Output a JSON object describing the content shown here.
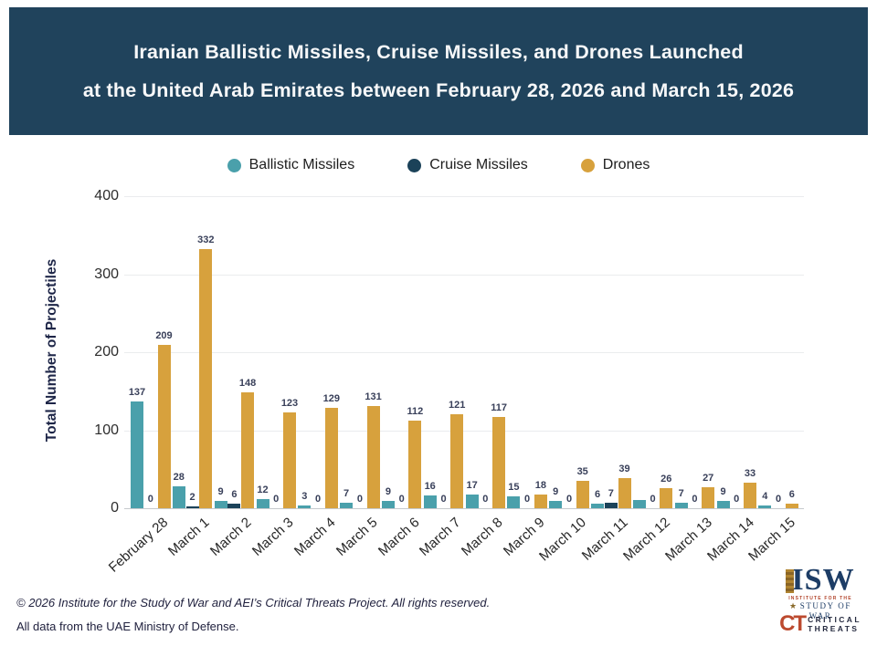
{
  "header": {
    "title_line1": "Iranian Ballistic Missiles, Cruise Missiles, and Drones Launched",
    "title_line2": "at the United Arab Emirates between February 28, 2026 and March 15, 2026"
  },
  "chart_data": {
    "type": "bar",
    "title": "Iranian Ballistic Missiles, Cruise Missiles, and Drones Launched at the United Arab Emirates between February 28, 2026 and March 15, 2026",
    "categories": [
      "February 28",
      "March 1",
      "March 2",
      "March 3",
      "March 4",
      "March 5",
      "March 6",
      "March 7",
      "March 8",
      "March 9",
      "March 10",
      "March 11",
      "March 12",
      "March 13",
      "March 14",
      "March 15"
    ],
    "series": [
      {
        "name": "Ballistic Missiles",
        "color": "#4aa0ab",
        "values": [
          137,
          28,
          9,
          12,
          3,
          7,
          9,
          16,
          17,
          15,
          9,
          6,
          11,
          7,
          9,
          4
        ],
        "labels": [
          "137",
          "28",
          "9",
          "12",
          "3",
          "7",
          "9",
          "16",
          "17",
          "15",
          "9",
          "6",
          "",
          "7",
          "9",
          "4"
        ]
      },
      {
        "name": "Cruise Missiles",
        "color": "#1b4259",
        "values": [
          0,
          2,
          6,
          0,
          0,
          0,
          0,
          0,
          0,
          0,
          0,
          7,
          0,
          0,
          0,
          0
        ],
        "labels": [
          "0",
          "2",
          "6",
          "0",
          "0",
          "0",
          "0",
          "0",
          "0",
          "0",
          "0",
          "7",
          "0",
          "0",
          "0",
          "0"
        ]
      },
      {
        "name": "Drones",
        "color": "#d7a13d",
        "values": [
          209,
          332,
          148,
          123,
          129,
          131,
          112,
          121,
          117,
          18,
          35,
          39,
          26,
          27,
          33,
          6
        ],
        "labels": [
          "209",
          "332",
          "148",
          "123",
          "129",
          "131",
          "112",
          "121",
          "117",
          "18",
          "35",
          "39",
          "26",
          "27",
          "33",
          "6"
        ]
      }
    ],
    "xlabel": "",
    "ylabel": "Total Number of Projectiles",
    "ylim": [
      0,
      400
    ],
    "yticks": [
      0,
      100,
      200,
      300,
      400
    ],
    "grid": true,
    "legend_position": "top"
  },
  "footer": {
    "line1": "© 2026 Institute for the Study of War and AEI’s Critical Threats Project. All rights reserved.",
    "line2": "All data from the UAE Ministry of Defense."
  },
  "logos": {
    "isw": {
      "acronym": "ISW",
      "line1": "INSTITUTE FOR THE",
      "line2": "STUDY OF WAR",
      "star": "★"
    },
    "ct": {
      "acronym": "CT",
      "line1": "CRITICAL",
      "line2": "THREATS"
    }
  }
}
